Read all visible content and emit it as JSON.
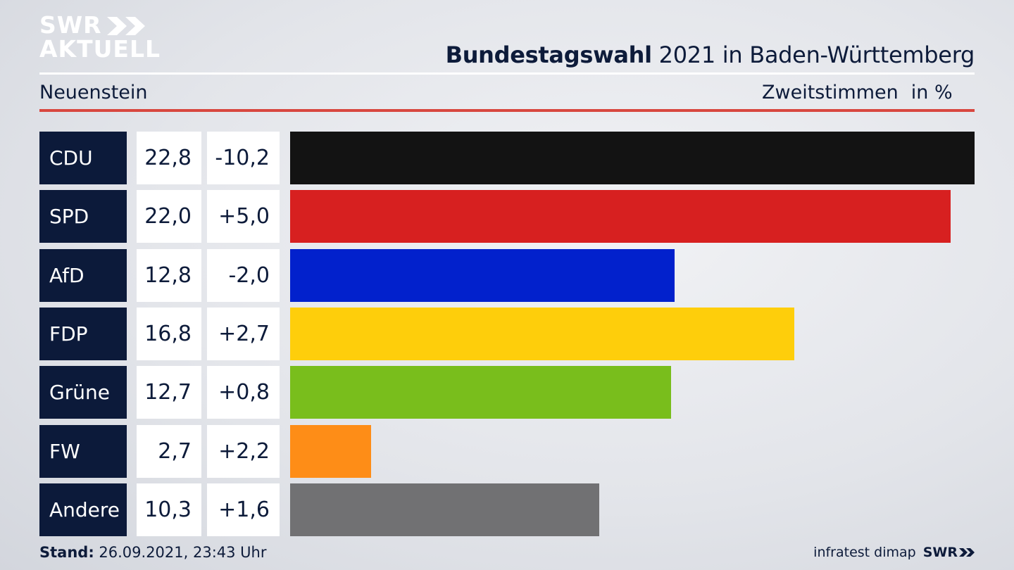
{
  "brand": {
    "line1": "SWR",
    "line2": "AKTUELL"
  },
  "header": {
    "title_bold": "Bundestagswahl",
    "title_rest": " 2021 in Baden-Württemberg"
  },
  "subheader": {
    "location": "Neuenstein",
    "measure": "Zweitstimmen",
    "unit": "in %"
  },
  "colors": {
    "CDU": "#131313",
    "SPD": "#d72020",
    "AfD": "#0221cc",
    "FDP": "#fece0b",
    "Grüne": "#79be1c",
    "FW": "#fe8d17",
    "Andere": "#717173",
    "accent_red": "#d8473f",
    "navy": "#0c1a3a"
  },
  "chart_data": {
    "type": "bar",
    "orientation": "horizontal",
    "categories": [
      "CDU",
      "SPD",
      "AfD",
      "FDP",
      "Grüne",
      "FW",
      "Andere"
    ],
    "values": [
      22.8,
      22.0,
      12.8,
      16.8,
      12.7,
      2.7,
      10.3
    ],
    "value_labels": [
      "22,8",
      "22,0",
      "12,8",
      "16,8",
      "12,7",
      "2,7",
      "10,3"
    ],
    "diff_labels": [
      "-10,2",
      "+5,0",
      "-2,0",
      "+2,7",
      "+0,8",
      "+2,2",
      "+1,6"
    ],
    "xlim": [
      0,
      22.8
    ],
    "grid": false,
    "legend": "none"
  },
  "footer": {
    "stand_label": "Stand:",
    "stand_value": " 26.09.2021, 23:43 Uhr",
    "source": "infratest dimap",
    "brand": "SWR"
  }
}
